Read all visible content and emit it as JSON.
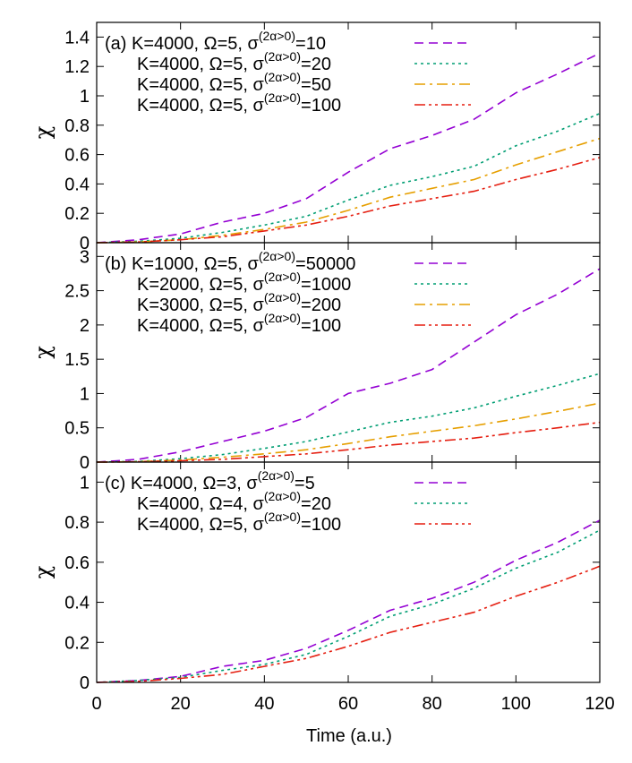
{
  "chart_data": {
    "type": "line",
    "xlabel": "Time (a.u.)",
    "xlim": [
      0,
      120
    ],
    "xticks": [
      0,
      20,
      40,
      60,
      80,
      100,
      120
    ],
    "shared_x": true,
    "legend_position": "top-left",
    "panels": [
      {
        "tag": "(a)",
        "ylabel": "χ",
        "ylim": [
          0,
          1.5
        ],
        "yticks": [
          0,
          0.2,
          0.4,
          0.6,
          0.8,
          1,
          1.2,
          1.4
        ],
        "series": [
          {
            "name": "K=4000, Ω=5, σ",
            "sup": "(2α>0)",
            "val": "=10",
            "color": "#9400d3",
            "dash": "dashed",
            "x": [
              0,
              10,
              20,
              30,
              40,
              50,
              60,
              70,
              80,
              90,
              100,
              110,
              120
            ],
            "y": [
              0,
              0.02,
              0.06,
              0.14,
              0.2,
              0.3,
              0.48,
              0.64,
              0.73,
              0.84,
              1.02,
              1.15,
              1.29
            ]
          },
          {
            "name": "K=4000, Ω=5, σ",
            "sup": "(2α>0)",
            "val": "=20",
            "color": "#009e73",
            "dash": "dotted",
            "x": [
              0,
              10,
              20,
              30,
              40,
              50,
              60,
              70,
              80,
              90,
              100,
              110,
              120
            ],
            "y": [
              0,
              0.01,
              0.03,
              0.07,
              0.12,
              0.18,
              0.29,
              0.39,
              0.45,
              0.52,
              0.66,
              0.76,
              0.88
            ]
          },
          {
            "name": "K=4000, Ω=5, σ",
            "sup": "(2α>0)",
            "val": "=50",
            "color": "#e69f00",
            "dash": "dashdot",
            "x": [
              0,
              10,
              20,
              30,
              40,
              50,
              60,
              70,
              80,
              90,
              100,
              110,
              120
            ],
            "y": [
              0,
              0.005,
              0.02,
              0.05,
              0.09,
              0.14,
              0.22,
              0.31,
              0.37,
              0.43,
              0.53,
              0.62,
              0.71
            ]
          },
          {
            "name": "K=4000, Ω=5, σ",
            "sup": "(2α>0)",
            "val": "=100",
            "color": "#e51e10",
            "dash": "dashdotdot",
            "x": [
              0,
              10,
              20,
              30,
              40,
              50,
              60,
              70,
              80,
              90,
              100,
              110,
              120
            ],
            "y": [
              0,
              0.005,
              0.02,
              0.04,
              0.08,
              0.12,
              0.18,
              0.25,
              0.3,
              0.35,
              0.43,
              0.5,
              0.58
            ]
          }
        ]
      },
      {
        "tag": "(b)",
        "ylabel": "χ",
        "ylim": [
          0,
          3.2
        ],
        "yticks": [
          0,
          0.5,
          1,
          1.5,
          2,
          2.5,
          3
        ],
        "series": [
          {
            "name": "K=1000, Ω=5, σ",
            "sup": "(2α>0)",
            "val": "=50000",
            "color": "#9400d3",
            "dash": "dashed",
            "x": [
              0,
              10,
              20,
              30,
              40,
              50,
              60,
              70,
              80,
              90,
              100,
              110,
              120
            ],
            "y": [
              0,
              0.04,
              0.15,
              0.3,
              0.45,
              0.65,
              1.0,
              1.15,
              1.35,
              1.75,
              2.15,
              2.45,
              2.82
            ]
          },
          {
            "name": "K=2000, Ω=5, σ",
            "sup": "(2α>0)",
            "val": "=1000",
            "color": "#009e73",
            "dash": "dotted",
            "x": [
              0,
              10,
              20,
              30,
              40,
              50,
              60,
              70,
              80,
              90,
              100,
              110,
              120
            ],
            "y": [
              0,
              0.01,
              0.05,
              0.11,
              0.2,
              0.3,
              0.44,
              0.58,
              0.67,
              0.79,
              0.96,
              1.12,
              1.29
            ]
          },
          {
            "name": "K=3000, Ω=5, σ",
            "sup": "(2α>0)",
            "val": "=200",
            "color": "#e69f00",
            "dash": "dashdot",
            "x": [
              0,
              10,
              20,
              30,
              40,
              50,
              60,
              70,
              80,
              90,
              100,
              110,
              120
            ],
            "y": [
              0,
              0.005,
              0.03,
              0.07,
              0.12,
              0.18,
              0.27,
              0.37,
              0.45,
              0.53,
              0.63,
              0.74,
              0.86
            ]
          },
          {
            "name": "K=4000, Ω=5, σ",
            "sup": "(2α>0)",
            "val": "=100",
            "color": "#e51e10",
            "dash": "dashdotdot",
            "x": [
              0,
              10,
              20,
              30,
              40,
              50,
              60,
              70,
              80,
              90,
              100,
              110,
              120
            ],
            "y": [
              0,
              0.005,
              0.02,
              0.04,
              0.08,
              0.12,
              0.18,
              0.25,
              0.3,
              0.35,
              0.43,
              0.5,
              0.58
            ]
          }
        ]
      },
      {
        "tag": "(c)",
        "ylabel": "χ",
        "ylim": [
          0,
          1.1
        ],
        "yticks": [
          0,
          0.2,
          0.4,
          0.6,
          0.8,
          1
        ],
        "series": [
          {
            "name": "K=4000, Ω=3, σ",
            "sup": "(2α>0)",
            "val": "=5",
            "color": "#9400d3",
            "dash": "dashed",
            "x": [
              0,
              10,
              20,
              30,
              40,
              50,
              60,
              70,
              80,
              90,
              100,
              110,
              120
            ],
            "y": [
              0,
              0.01,
              0.03,
              0.08,
              0.11,
              0.17,
              0.26,
              0.36,
              0.42,
              0.5,
              0.61,
              0.7,
              0.81
            ]
          },
          {
            "name": "K=4000, Ω=4, σ",
            "sup": "(2α>0)",
            "val": "=20",
            "color": "#009e73",
            "dash": "dotted",
            "x": [
              0,
              10,
              20,
              30,
              40,
              50,
              60,
              70,
              80,
              90,
              100,
              110,
              120
            ],
            "y": [
              0,
              0.01,
              0.025,
              0.06,
              0.09,
              0.14,
              0.23,
              0.33,
              0.39,
              0.47,
              0.57,
              0.65,
              0.76
            ]
          },
          {
            "name": "K=4000, Ω=5, σ",
            "sup": "(2α>0)",
            "val": "=100",
            "color": "#e51e10",
            "dash": "dashdotdot",
            "x": [
              0,
              10,
              20,
              30,
              40,
              50,
              60,
              70,
              80,
              90,
              100,
              110,
              120
            ],
            "y": [
              0,
              0.005,
              0.02,
              0.04,
              0.08,
              0.12,
              0.18,
              0.25,
              0.3,
              0.35,
              0.43,
              0.5,
              0.58
            ]
          }
        ]
      }
    ]
  }
}
